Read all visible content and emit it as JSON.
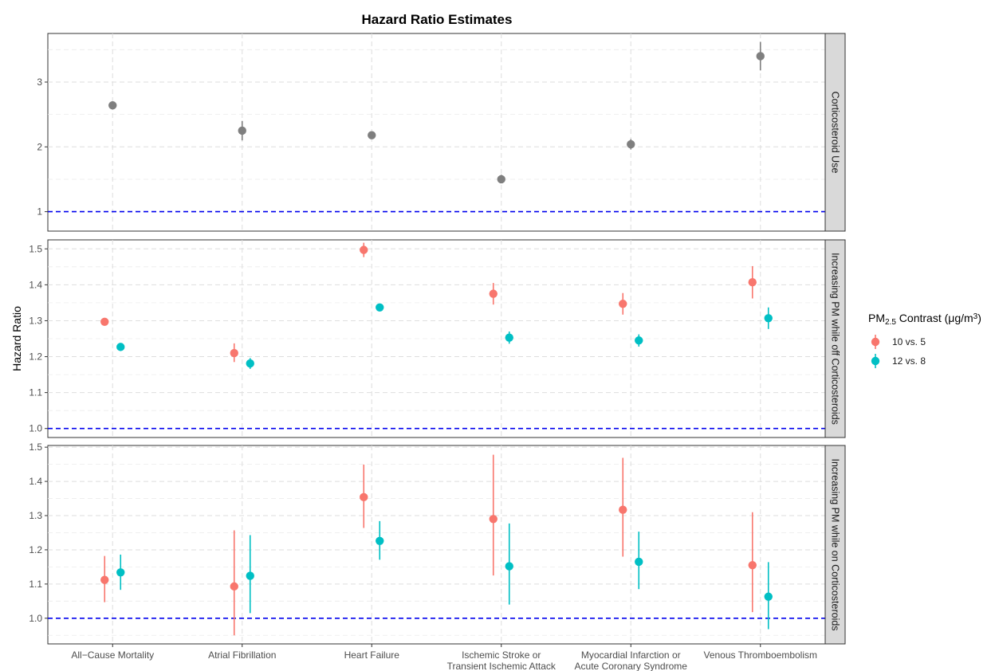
{
  "chart_data": {
    "type": "scatter",
    "title": "Hazard Ratio Estimates",
    "ylabel": "Hazard Ratio",
    "xlabel": "",
    "categories": [
      [
        "All−Cause Mortality"
      ],
      [
        "Atrial Fibrillation"
      ],
      [
        "Heart Failure"
      ],
      [
        "Ischemic Stroke or",
        "Transient Ischemic Attack"
      ],
      [
        "Myocardial Infarction or",
        "Acute Coronary Syndrome"
      ],
      [
        "Venous Thromboembolism"
      ]
    ],
    "reference_line": 1.0,
    "grid": true,
    "legend": {
      "title_main": "PM",
      "title_sub": "2.5",
      "title_rest": " Contrast (μg/m",
      "title_sup": "3",
      "title_end": ")",
      "position": "right",
      "entries": [
        {
          "label": "10 vs. 5",
          "color": "#F8766D"
        },
        {
          "label": "12 vs. 8",
          "color": "#00BFC4"
        }
      ]
    },
    "panels": [
      {
        "strip": "Corticosteroid Use",
        "ylim": [
          0.7,
          3.75
        ],
        "yticks": [
          1,
          2,
          3
        ],
        "yticklabels": [
          "1",
          "2",
          "3"
        ],
        "yminor": [
          1.5,
          2.5,
          3.5
        ],
        "series": [
          {
            "name": "",
            "color": "#7f7f7f",
            "estimates": [
              2.64,
              2.25,
              2.18,
              1.5,
              2.04,
              3.4
            ],
            "lower": [
              2.6,
              2.1,
              2.15,
              1.44,
              1.96,
              3.18
            ],
            "upper": [
              2.68,
              2.4,
              2.21,
              1.57,
              2.12,
              3.62
            ]
          }
        ]
      },
      {
        "strip": "Increasing PM while off Corticosteroids",
        "ylim": [
          0.975,
          1.525
        ],
        "yticks": [
          1.0,
          1.1,
          1.2,
          1.3,
          1.4,
          1.5
        ],
        "yticklabels": [
          "1.0",
          "1.1",
          "1.2",
          "1.3",
          "1.4",
          "1.5"
        ],
        "yminor": [
          1.05,
          1.15,
          1.25,
          1.35,
          1.45
        ],
        "series": [
          {
            "name": "10 vs. 5",
            "color": "#F8766D",
            "estimates": [
              1.297,
              1.21,
              1.497,
              1.375,
              1.347,
              1.407
            ],
            "lower": [
              1.287,
              1.185,
              1.477,
              1.345,
              1.317,
              1.362
            ],
            "upper": [
              1.307,
              1.237,
              1.517,
              1.405,
              1.377,
              1.452
            ]
          },
          {
            "name": "12 vs. 8",
            "color": "#00BFC4",
            "estimates": [
              1.227,
              1.181,
              1.337,
              1.253,
              1.245,
              1.307
            ],
            "lower": [
              1.217,
              1.166,
              1.327,
              1.236,
              1.228,
              1.277
            ],
            "upper": [
              1.237,
              1.196,
              1.347,
              1.27,
              1.262,
              1.337
            ]
          }
        ]
      },
      {
        "strip": "Increasing PM while on Corticosteroids",
        "ylim": [
          0.925,
          1.505
        ],
        "yticks": [
          1.0,
          1.1,
          1.2,
          1.3,
          1.4,
          1.5
        ],
        "yticklabels": [
          "1.0",
          "1.1",
          "1.2",
          "1.3",
          "1.4",
          "1.5"
        ],
        "yminor": [
          0.95,
          1.05,
          1.15,
          1.25,
          1.35,
          1.45
        ],
        "series": [
          {
            "name": "10 vs. 5",
            "color": "#F8766D",
            "estimates": [
              1.112,
              1.093,
              1.354,
              1.29,
              1.317,
              1.155
            ],
            "lower": [
              1.047,
              0.95,
              1.264,
              1.125,
              1.18,
              1.018
            ],
            "upper": [
              1.182,
              1.257,
              1.449,
              1.478,
              1.469,
              1.31
            ]
          },
          {
            "name": "12 vs. 8",
            "color": "#00BFC4",
            "estimates": [
              1.134,
              1.124,
              1.226,
              1.152,
              1.165,
              1.063
            ],
            "lower": [
              1.083,
              1.015,
              1.171,
              1.04,
              1.085,
              0.968
            ],
            "upper": [
              1.186,
              1.243,
              1.284,
              1.277,
              1.253,
              1.164
            ]
          }
        ]
      }
    ]
  }
}
